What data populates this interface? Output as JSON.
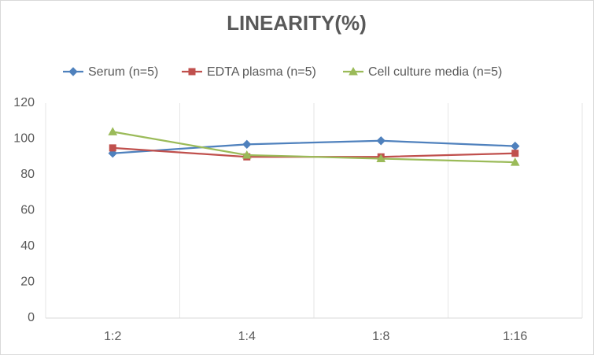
{
  "chart_data": {
    "type": "line",
    "title": "LINEARITY(%)",
    "categories": [
      "1:2",
      "1:4",
      "1:8",
      "1:16"
    ],
    "series": [
      {
        "name": "Serum (n=5)",
        "color": "#4f81bd",
        "marker": "diamond",
        "values": [
          92,
          97,
          99,
          96
        ]
      },
      {
        "name": "EDTA plasma (n=5)",
        "color": "#c0504d",
        "marker": "square",
        "values": [
          95,
          90,
          90,
          92
        ]
      },
      {
        "name": "Cell culture media (n=5)",
        "color": "#9bbb59",
        "marker": "triangle",
        "values": [
          104,
          91,
          89,
          87
        ]
      }
    ],
    "ylim": [
      0,
      120
    ],
    "yticks": [
      0,
      20,
      40,
      60,
      80,
      100,
      120
    ],
    "legend": "top"
  }
}
